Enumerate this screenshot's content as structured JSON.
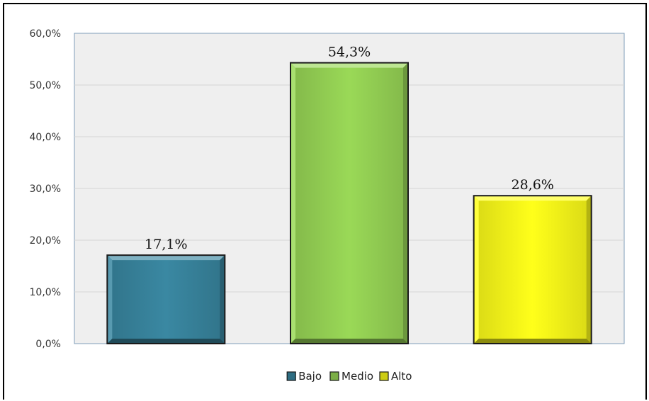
{
  "chart_data": {
    "type": "bar",
    "title": "",
    "xlabel": "",
    "ylabel": "",
    "categories": [
      "Bajo",
      "Medio",
      "Alto"
    ],
    "values": [
      17.1,
      54.3,
      28.6
    ],
    "value_labels": [
      "17,1%",
      "54,3%",
      "28,6%"
    ],
    "ylim": [
      0,
      60
    ],
    "yticks": [
      0,
      10,
      20,
      30,
      40,
      50,
      60
    ],
    "ytick_labels": [
      "0,0%",
      "10,0%",
      "20,0%",
      "30,0%",
      "40,0%",
      "50,0%",
      "60,0%"
    ],
    "colors": [
      "#3a88a2",
      "#9ad957",
      "#ffff1a"
    ],
    "grid": true,
    "legend": {
      "position": "bottom-center",
      "entries": [
        "Bajo",
        "Medio",
        "Alto"
      ]
    }
  }
}
